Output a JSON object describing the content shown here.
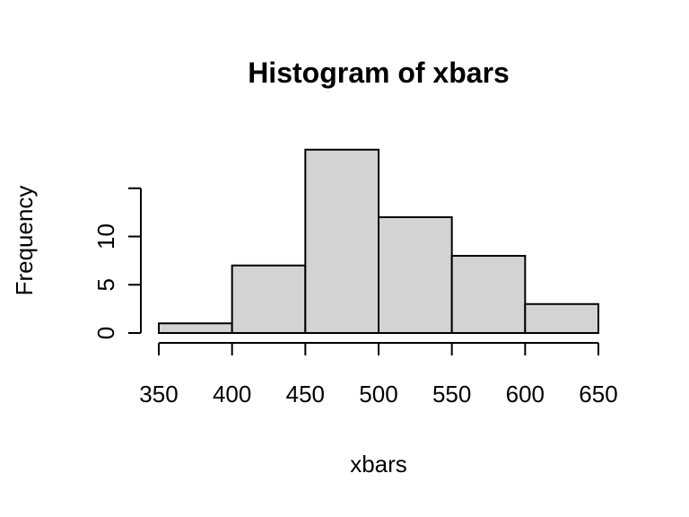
{
  "chart_data": {
    "type": "bar",
    "title": "Histogram of xbars",
    "xlabel": "xbars",
    "ylabel": "Frequency",
    "bins": [
      {
        "from": 350,
        "to": 400,
        "count": 1
      },
      {
        "from": 400,
        "to": 450,
        "count": 7
      },
      {
        "from": 450,
        "to": 500,
        "count": 19
      },
      {
        "from": 500,
        "to": 550,
        "count": 12
      },
      {
        "from": 550,
        "to": 600,
        "count": 8
      },
      {
        "from": 600,
        "to": 650,
        "count": 3
      }
    ],
    "x_ticks": [
      350,
      400,
      450,
      500,
      550,
      600,
      650
    ],
    "y_ticks": [
      0,
      5,
      10,
      15
    ],
    "y_tick_labels": [
      "0",
      "5",
      "10",
      ""
    ],
    "xlim": [
      350,
      650
    ],
    "ylim": [
      0,
      19
    ],
    "grid": false,
    "bar_fill": "#d3d3d3",
    "bar_stroke": "#000000"
  }
}
